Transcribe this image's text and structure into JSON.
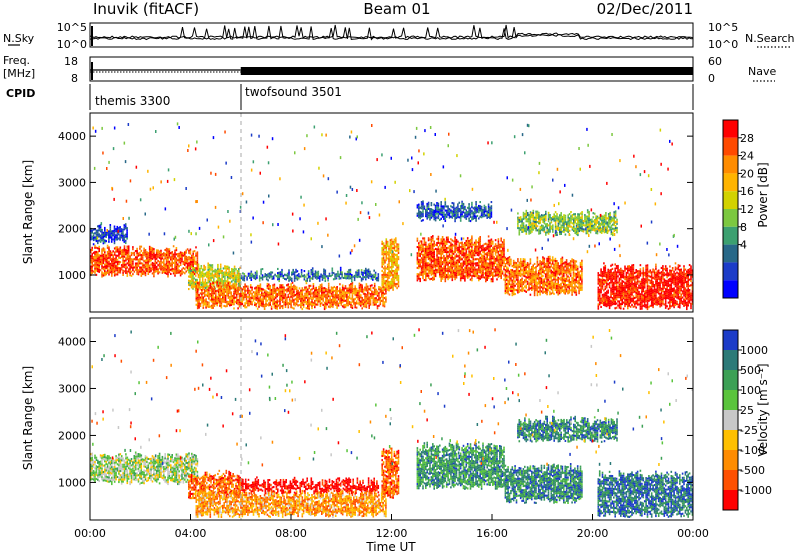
{
  "header": {
    "station": "Inuvik (fitACF)",
    "beam": "Beam 01",
    "date": "02/Dec/2011"
  },
  "strip_labels": {
    "nsky": "N.Sky",
    "nsearch": "N.Search",
    "freq_line1": "Freq.",
    "freq_line2": "[MHz]",
    "nave": "Nave",
    "cpid": "CPID"
  },
  "noise_panel": {
    "left_ticks": [
      "10^5",
      "10^0"
    ],
    "right_ticks": [
      "10^5",
      "10^0"
    ]
  },
  "freq_panel": {
    "left_ticks": [
      "18",
      "8"
    ],
    "right_ticks": [
      "60",
      "0"
    ]
  },
  "cpid_panel": {
    "segments": [
      {
        "label": "themis 3300",
        "start_hour": 0,
        "end_hour": 6
      },
      {
        "label": "twofsound 3501",
        "start_hour": 6,
        "end_hour": 24
      }
    ]
  },
  "chart_data": [
    {
      "type": "heatmap",
      "panel": "power",
      "ylabel": "Slant Range [km]",
      "ylim": [
        200,
        4500
      ],
      "yticks": [
        "1000",
        "2000",
        "3000",
        "4000"
      ],
      "xlim": [
        0,
        24
      ],
      "colorbar_label": "Power [dB]",
      "colorbar_ticks": [
        "28",
        "24",
        "20",
        "16",
        "12",
        "8",
        "4"
      ],
      "colorbar_colors": [
        "#ff0000",
        "#ff4a00",
        "#ff8c00",
        "#ffb400",
        "#d2d200",
        "#7cc840",
        "#3ca070",
        "#286888",
        "#1c3cc8",
        "#0000ff"
      ],
      "bands": [
        {
          "t0": 0.0,
          "t1": 4.3,
          "r0": 1000,
          "r1": 1550,
          "level": 0.85
        },
        {
          "t0": 3.9,
          "t1": 6.0,
          "r0": 700,
          "r1": 1150,
          "level": 0.55
        },
        {
          "t0": 4.2,
          "t1": 11.8,
          "r0": 300,
          "r1": 750,
          "level": 0.8
        },
        {
          "t0": 6.0,
          "t1": 11.5,
          "r0": 900,
          "r1": 1050,
          "level": 0.25
        },
        {
          "t0": 11.6,
          "t1": 12.3,
          "r0": 700,
          "r1": 1700,
          "level": 0.7
        },
        {
          "t0": 13.0,
          "t1": 16.5,
          "r0": 900,
          "r1": 1750,
          "level": 0.85
        },
        {
          "t0": 16.5,
          "t1": 19.6,
          "r0": 600,
          "r1": 1300,
          "level": 0.8
        },
        {
          "t0": 20.2,
          "t1": 24.0,
          "r0": 300,
          "r1": 1150,
          "level": 0.95
        },
        {
          "t0": 0.0,
          "t1": 1.5,
          "r0": 1700,
          "r1": 2000,
          "level": 0.15
        },
        {
          "t0": 13.0,
          "t1": 16.0,
          "r0": 2200,
          "r1": 2500,
          "level": 0.2
        },
        {
          "t0": 17.0,
          "t1": 21.0,
          "r0": 1900,
          "r1": 2300,
          "level": 0.45
        }
      ]
    },
    {
      "type": "heatmap",
      "panel": "velocity",
      "ylabel": "Slant Range [km]",
      "xlabel": "Time UT",
      "ylim": [
        200,
        4500
      ],
      "yticks": [
        "1000",
        "2000",
        "3000",
        "4000"
      ],
      "xlim": [
        0,
        24
      ],
      "xticks": [
        "00:00",
        "04:00",
        "08:00",
        "12:00",
        "16:00",
        "20:00",
        "00:00"
      ],
      "colorbar_label": "Velocity [m s⁻¹]",
      "colorbar_ticks": [
        "1000",
        "500",
        "100",
        "25",
        "-25",
        "-100",
        "-500",
        "-1000"
      ],
      "colorbar_colors": [
        "#1c3cc8",
        "#2c7a78",
        "#3ca055",
        "#5ac43c",
        "#c8c8c8",
        "#ffc000",
        "#ff8c00",
        "#ff5000",
        "#ff0000"
      ],
      "bands": [
        {
          "t0": 0.0,
          "t1": 4.3,
          "r0": 1000,
          "r1": 1550,
          "level": 0.55
        },
        {
          "t0": 3.9,
          "t1": 6.0,
          "r0": 700,
          "r1": 1150,
          "level": 0.2
        },
        {
          "t0": 4.2,
          "t1": 11.8,
          "r0": 300,
          "r1": 750,
          "level": 0.3
        },
        {
          "t0": 6.0,
          "t1": 11.5,
          "r0": 800,
          "r1": 1000,
          "level": 0.0
        },
        {
          "t0": 11.6,
          "t1": 12.3,
          "r0": 700,
          "r1": 1700,
          "level": 0.2
        },
        {
          "t0": 13.0,
          "t1": 16.5,
          "r0": 900,
          "r1": 1750,
          "level": 0.75
        },
        {
          "t0": 16.5,
          "t1": 19.6,
          "r0": 600,
          "r1": 1300,
          "level": 0.8
        },
        {
          "t0": 20.2,
          "t1": 24.0,
          "r0": 300,
          "r1": 1150,
          "level": 0.85
        },
        {
          "t0": 17.0,
          "t1": 21.0,
          "r0": 1900,
          "r1": 2300,
          "level": 0.8
        }
      ]
    }
  ]
}
